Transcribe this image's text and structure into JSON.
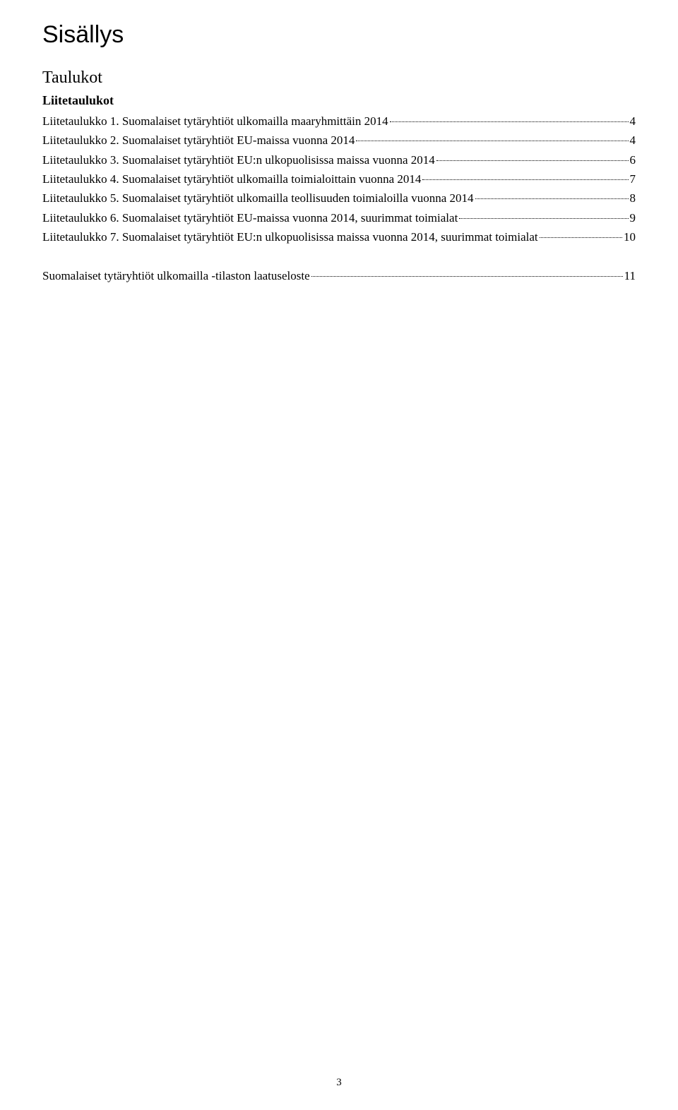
{
  "title": "Sisällys",
  "section": "Taulukot",
  "subsection": "Liitetaulukot",
  "toc": [
    {
      "label": "Liitetaulukko 1. Suomalaiset tytäryhtiöt ulkomailla maaryhmittäin 2014",
      "page": "4"
    },
    {
      "label": "Liitetaulukko 2. Suomalaiset tytäryhtiöt EU-maissa vuonna 2014",
      "page": "4"
    },
    {
      "label": "Liitetaulukko 3. Suomalaiset tytäryhtiöt EU:n ulkopuolisissa maissa vuonna 2014",
      "page": "6"
    },
    {
      "label": "Liitetaulukko 4. Suomalaiset tytäryhtiöt ulkomailla toimialoittain vuonna 2014",
      "page": "7"
    },
    {
      "label": "Liitetaulukko 5. Suomalaiset tytäryhtiöt ulkomailla teollisuuden toimialoilla vuonna 2014",
      "page": "8"
    },
    {
      "label": "Liitetaulukko 6. Suomalaiset tytäryhtiöt EU-maissa vuonna 2014, suurimmat toimialat",
      "page": "9"
    },
    {
      "label": "Liitetaulukko 7. Suomalaiset tytäryhtiöt EU:n ulkopuolisissa maissa vuonna 2014, suurimmat toimialat",
      "page": "10"
    }
  ],
  "appendix": {
    "label": "Suomalaiset tytäryhtiöt ulkomailla -tilaston laatuseloste",
    "page": "11"
  },
  "page_number": "3"
}
